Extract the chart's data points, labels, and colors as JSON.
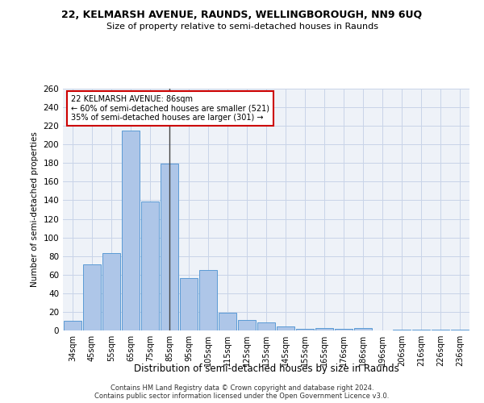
{
  "title1": "22, KELMARSH AVENUE, RAUNDS, WELLINGBOROUGH, NN9 6UQ",
  "title2": "Size of property relative to semi-detached houses in Raunds",
  "xlabel": "Distribution of semi-detached houses by size in Raunds",
  "ylabel": "Number of semi-detached properties",
  "categories": [
    "34sqm",
    "45sqm",
    "55sqm",
    "65sqm",
    "75sqm",
    "85sqm",
    "95sqm",
    "105sqm",
    "115sqm",
    "125sqm",
    "135sqm",
    "145sqm",
    "155sqm",
    "165sqm",
    "176sqm",
    "186sqm",
    "196sqm",
    "206sqm",
    "216sqm",
    "226sqm",
    "236sqm"
  ],
  "values": [
    10,
    71,
    83,
    215,
    139,
    179,
    56,
    65,
    19,
    11,
    9,
    4,
    2,
    3,
    2,
    3,
    0,
    1,
    1,
    1,
    1
  ],
  "bar_color": "#aec6e8",
  "bar_edge_color": "#5b9bd5",
  "highlight_bar_index": 5,
  "highlight_line_color": "#444444",
  "annotation_text_line1": "22 KELMARSH AVENUE: 86sqm",
  "annotation_text_line2": "← 60% of semi-detached houses are smaller (521)",
  "annotation_text_line3": "35% of semi-detached houses are larger (301) →",
  "annotation_box_color": "#cc0000",
  "annotation_bg": "#ffffff",
  "ylim": [
    0,
    260
  ],
  "yticks": [
    0,
    20,
    40,
    60,
    80,
    100,
    120,
    140,
    160,
    180,
    200,
    220,
    240,
    260
  ],
  "grid_color": "#c8d4e8",
  "background_color": "#eef2f8",
  "footer1": "Contains HM Land Registry data © Crown copyright and database right 2024.",
  "footer2": "Contains public sector information licensed under the Open Government Licence v3.0."
}
